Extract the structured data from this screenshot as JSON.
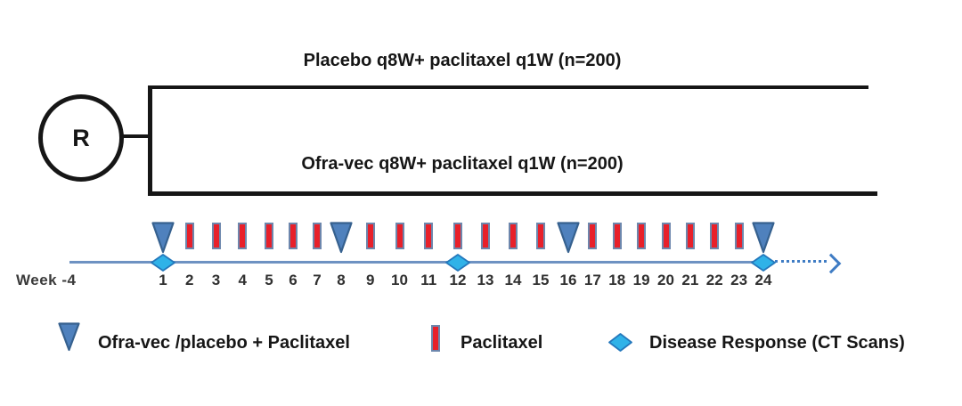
{
  "randomization": {
    "label": "R"
  },
  "arms": [
    {
      "label": "Placebo q8W+ paclitaxel q1W (n=200)"
    },
    {
      "label": "Ofra-vec q8W+ paclitaxel q1W (n=200)"
    }
  ],
  "timeline": {
    "start_label": "Week -4",
    "week_numbers": [
      1,
      2,
      3,
      4,
      5,
      6,
      7,
      8,
      9,
      10,
      11,
      12,
      13,
      14,
      15,
      16,
      17,
      18,
      19,
      20,
      21,
      22,
      23,
      24
    ],
    "markers": {
      "ofra_vec_placebo_dose_weeks": [
        1,
        8,
        16,
        24
      ],
      "paclitaxel_dose_weeks": [
        2,
        3,
        4,
        5,
        6,
        7,
        9,
        10,
        11,
        12,
        13,
        14,
        15,
        17,
        18,
        19,
        20,
        21,
        22,
        23
      ],
      "disease_response_ct_scan_weeks": [
        1,
        12,
        24
      ]
    },
    "continues_beyond_last_week": true
  },
  "legend": {
    "items": [
      {
        "marker": "triangle",
        "label": "Ofra-vec /placebo + Paclitaxel"
      },
      {
        "marker": "bar",
        "label": "Paclitaxel"
      },
      {
        "marker": "diamond",
        "label": "Disease Response (CT Scans)"
      }
    ]
  },
  "colors": {
    "triangle_fill": "#4f81bd",
    "triangle_border": "#36618f",
    "bar_fill": "#e8202a",
    "bar_border": "#6d87ad",
    "diamond_fill": "#2fb2e8",
    "diamond_border": "#2478bc",
    "arm_line": "#161616",
    "timeline_line": "#6e92c2",
    "arrow": "#3f7cc4"
  }
}
